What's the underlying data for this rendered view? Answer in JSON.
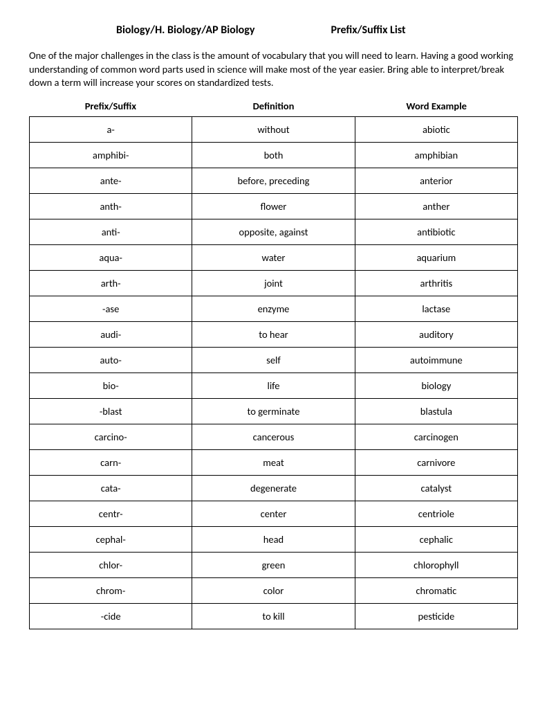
{
  "header": {
    "left": "Biology/H. Biology/AP Biology",
    "right": "Prefix/Suffix List"
  },
  "intro": "One of the major challenges in the class is the amount of vocabulary that you will need to learn.  Having a good working understanding of common word parts used in science will make most of the year easier.  Bring able to interpret/break down a term will increase your scores on standardized tests.",
  "columns": {
    "col1": "Prefix/Suffix",
    "col2": "Definition",
    "col3": "Word Example"
  },
  "rows": [
    {
      "prefix": "a-",
      "definition": "without",
      "example": "abiotic"
    },
    {
      "prefix": "amphibi-",
      "definition": "both",
      "example": "amphibian"
    },
    {
      "prefix": "ante-",
      "definition": "before, preceding",
      "example": "anterior"
    },
    {
      "prefix": "anth-",
      "definition": "flower",
      "example": "anther"
    },
    {
      "prefix": "anti-",
      "definition": "opposite, against",
      "example": "antibiotic"
    },
    {
      "prefix": "aqua-",
      "definition": "water",
      "example": "aquarium"
    },
    {
      "prefix": "arth-",
      "definition": "joint",
      "example": "arthritis"
    },
    {
      "prefix": "-ase",
      "definition": "enzyme",
      "example": "lactase"
    },
    {
      "prefix": "audi-",
      "definition": "to hear",
      "example": "auditory"
    },
    {
      "prefix": "auto-",
      "definition": "self",
      "example": "autoimmune"
    },
    {
      "prefix": "bio-",
      "definition": "life",
      "example": "biology"
    },
    {
      "prefix": "-blast",
      "definition": "to germinate",
      "example": "blastula"
    },
    {
      "prefix": "carcino-",
      "definition": "cancerous",
      "example": "carcinogen"
    },
    {
      "prefix": "carn-",
      "definition": "meat",
      "example": "carnivore"
    },
    {
      "prefix": "cata-",
      "definition": "degenerate",
      "example": "catalyst"
    },
    {
      "prefix": "centr-",
      "definition": "center",
      "example": "centriole"
    },
    {
      "prefix": "cephal-",
      "definition": "head",
      "example": "cephalic"
    },
    {
      "prefix": "chlor-",
      "definition": "green",
      "example": "chlorophyll"
    },
    {
      "prefix": "chrom-",
      "definition": "color",
      "example": "chromatic"
    },
    {
      "prefix": "-cide",
      "definition": "to kill",
      "example": "pesticide"
    }
  ]
}
